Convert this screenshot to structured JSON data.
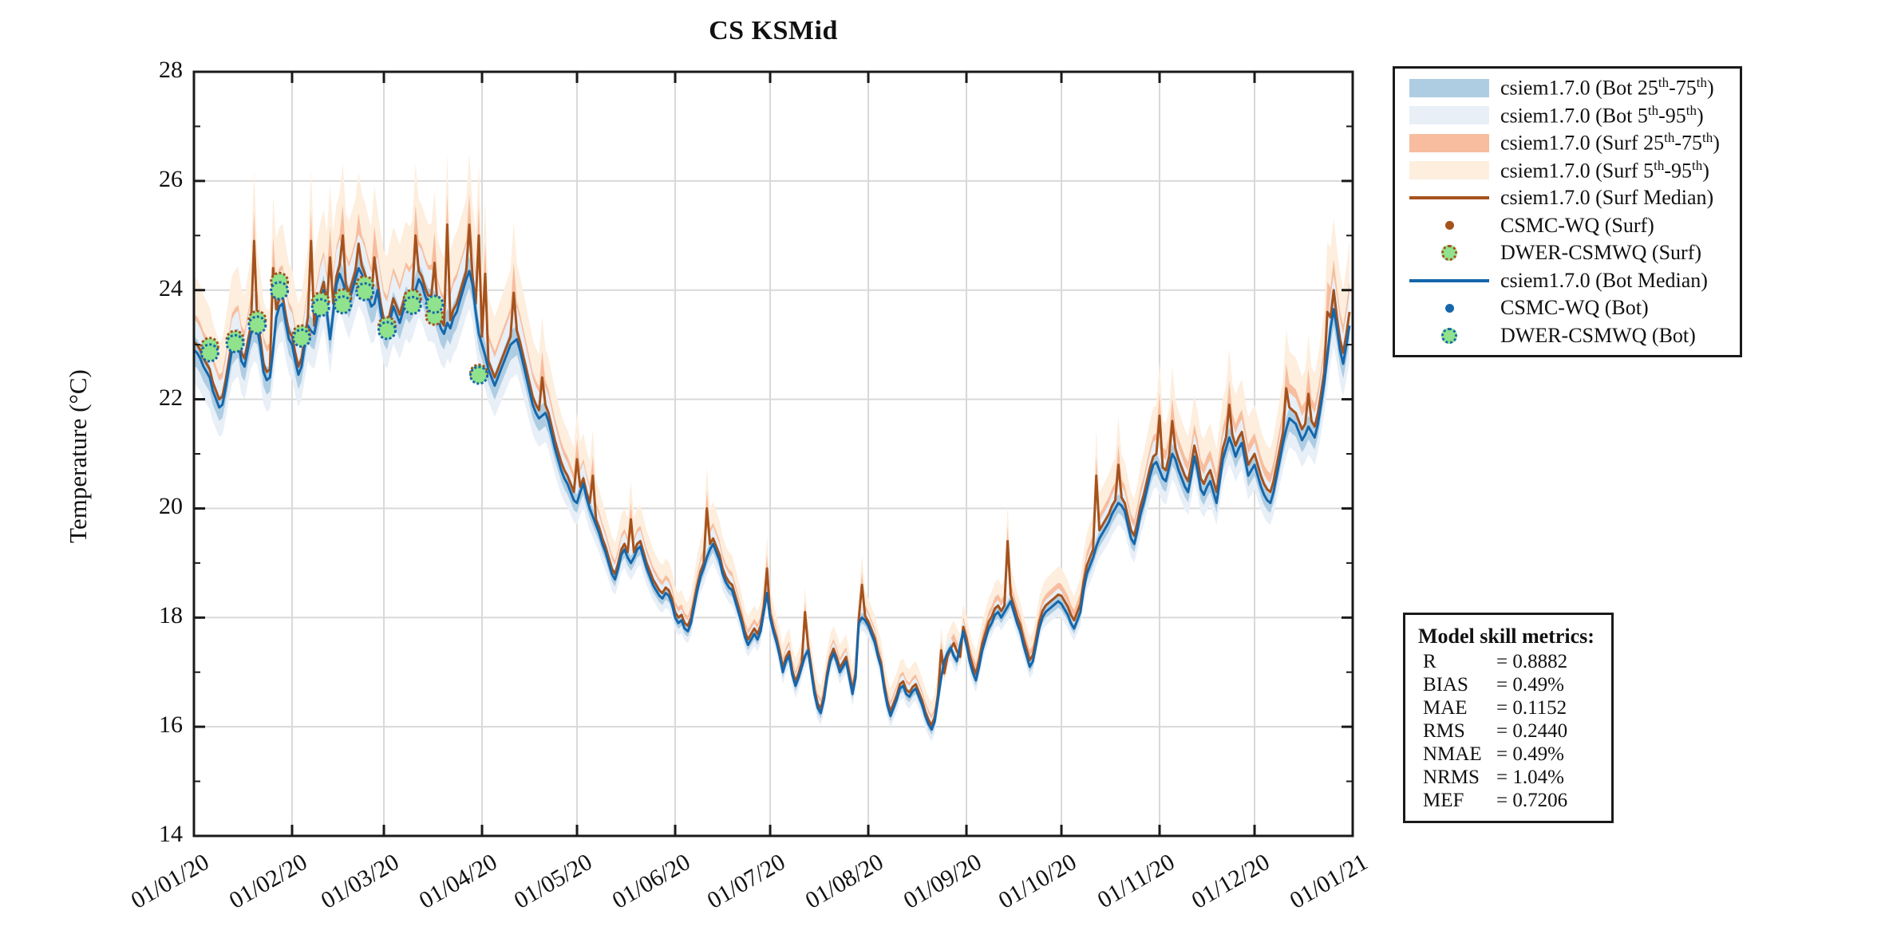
{
  "chart_data": {
    "type": "line",
    "title": "CS KSMid",
    "ylabel": "Temperature (°C)",
    "ylim": [
      14,
      28
    ],
    "yticks": [
      14,
      16,
      18,
      20,
      22,
      24,
      26,
      28
    ],
    "y_minor_ticks": [
      15,
      17,
      19,
      21,
      23,
      25,
      27
    ],
    "x_tick_labels": [
      "01/01/20",
      "01/02/20",
      "01/03/20",
      "01/04/20",
      "01/05/20",
      "01/06/20",
      "01/07/20",
      "01/08/20",
      "01/09/20",
      "01/10/20",
      "01/11/20",
      "01/12/20",
      "01/01/21"
    ],
    "x_tick_days": [
      0,
      31,
      60,
      91,
      121,
      152,
      182,
      213,
      244,
      274,
      305,
      335,
      366
    ],
    "n_days": 366,
    "grid": true,
    "axis_color": "#1a1a1a",
    "grid_color": "#d9d9d9",
    "series": [
      {
        "id": "bot",
        "name": "csiem1.7.0 (Bot Median)",
        "color": "#1467ab",
        "values": [
          22.9,
          22.85,
          22.75,
          22.6,
          22.5,
          22.4,
          22.15,
          22.0,
          21.85,
          21.9,
          22.2,
          22.55,
          22.9,
          23.0,
          23.05,
          22.7,
          22.6,
          22.9,
          23.2,
          23.35,
          23.3,
          22.95,
          22.5,
          22.35,
          22.4,
          22.9,
          23.5,
          23.7,
          23.75,
          23.4,
          23.1,
          23.0,
          22.7,
          22.45,
          22.6,
          23.0,
          23.35,
          23.25,
          23.2,
          23.5,
          23.8,
          24.0,
          23.6,
          23.1,
          23.6,
          24.1,
          24.3,
          24.15,
          23.95,
          23.8,
          24.0,
          24.2,
          24.4,
          24.3,
          24.15,
          23.9,
          23.7,
          23.75,
          24.0,
          23.6,
          23.3,
          23.2,
          23.45,
          23.7,
          23.55,
          23.4,
          23.6,
          23.8,
          23.7,
          23.8,
          24.0,
          24.2,
          24.1,
          23.9,
          23.75,
          23.75,
          23.7,
          23.5,
          23.3,
          23.2,
          23.4,
          23.3,
          23.5,
          23.6,
          23.8,
          24.0,
          24.2,
          24.35,
          24.1,
          23.6,
          23.2,
          23.0,
          22.8,
          22.55,
          22.4,
          22.25,
          22.4,
          22.55,
          22.7,
          22.85,
          23.0,
          23.05,
          23.1,
          22.9,
          22.65,
          22.4,
          22.15,
          21.9,
          21.75,
          21.65,
          21.7,
          21.75,
          21.6,
          21.35,
          21.1,
          20.9,
          20.7,
          20.55,
          20.45,
          20.3,
          20.15,
          20.1,
          20.3,
          20.45,
          20.2,
          20.0,
          19.85,
          19.7,
          19.55,
          19.35,
          19.2,
          19.0,
          18.8,
          18.7,
          18.9,
          19.15,
          19.25,
          19.1,
          19.0,
          19.1,
          19.25,
          19.3,
          19.1,
          18.9,
          18.75,
          18.6,
          18.5,
          18.4,
          18.35,
          18.45,
          18.4,
          18.25,
          18.0,
          17.9,
          17.95,
          17.8,
          17.75,
          17.9,
          18.2,
          18.5,
          18.75,
          18.9,
          19.1,
          19.25,
          19.35,
          19.2,
          19.05,
          18.8,
          18.65,
          18.55,
          18.5,
          18.3,
          18.1,
          17.9,
          17.65,
          17.5,
          17.6,
          17.7,
          17.6,
          17.75,
          18.1,
          18.45,
          18.0,
          17.75,
          17.55,
          17.3,
          17.0,
          17.2,
          17.3,
          16.95,
          16.75,
          16.9,
          17.1,
          17.3,
          17.4,
          17.0,
          16.6,
          16.35,
          16.25,
          16.5,
          16.9,
          17.2,
          17.35,
          17.2,
          17.0,
          17.1,
          17.2,
          16.9,
          16.6,
          16.9,
          17.9,
          18.0,
          17.95,
          17.85,
          17.7,
          17.55,
          17.3,
          17.1,
          16.7,
          16.4,
          16.2,
          16.35,
          16.5,
          16.7,
          16.75,
          16.6,
          16.55,
          16.65,
          16.7,
          16.55,
          16.4,
          16.2,
          16.05,
          15.95,
          16.1,
          16.5,
          16.9,
          17.2,
          17.35,
          17.45,
          17.3,
          17.2,
          17.5,
          17.75,
          17.5,
          17.2,
          17.0,
          16.85,
          17.1,
          17.4,
          17.6,
          17.8,
          17.9,
          18.05,
          18.1,
          18.0,
          18.1,
          18.2,
          18.3,
          18.1,
          17.9,
          17.75,
          17.5,
          17.3,
          17.1,
          17.2,
          17.5,
          17.8,
          18.0,
          18.1,
          18.15,
          18.2,
          18.25,
          18.3,
          18.25,
          18.15,
          18.05,
          17.9,
          17.8,
          17.95,
          18.1,
          18.5,
          18.8,
          18.95,
          19.1,
          19.3,
          19.45,
          19.55,
          19.65,
          19.75,
          19.9,
          20.0,
          20.1,
          20.05,
          19.95,
          19.7,
          19.45,
          19.35,
          19.6,
          19.9,
          20.1,
          20.35,
          20.6,
          20.8,
          20.85,
          20.7,
          20.55,
          20.5,
          20.75,
          21.0,
          20.9,
          20.7,
          20.55,
          20.4,
          20.3,
          20.6,
          20.95,
          20.7,
          20.35,
          20.25,
          20.4,
          20.5,
          20.3,
          20.1,
          20.5,
          20.9,
          21.1,
          21.3,
          21.15,
          20.95,
          21.1,
          21.2,
          20.9,
          20.6,
          20.7,
          20.8,
          20.6,
          20.4,
          20.25,
          20.15,
          20.1,
          20.3,
          20.6,
          20.9,
          21.2,
          21.45,
          21.65,
          21.6,
          21.55,
          21.4,
          21.25,
          21.35,
          21.5,
          21.4,
          21.3,
          21.55,
          21.9,
          22.3,
          22.8,
          23.3,
          23.65,
          23.3,
          22.9,
          22.65,
          23.0,
          23.35
        ]
      },
      {
        "id": "surf",
        "name": "csiem1.7.0 (Surf Median)",
        "color": "#a5521d",
        "values": [
          23.05,
          23.0,
          22.9,
          22.75,
          22.65,
          22.55,
          22.3,
          22.15,
          22.0,
          22.05,
          22.35,
          22.7,
          23.05,
          23.15,
          23.2,
          22.85,
          22.75,
          23.05,
          23.35,
          24.9,
          23.45,
          23.1,
          22.65,
          22.5,
          22.55,
          24.4,
          23.65,
          23.85,
          23.9,
          23.55,
          23.25,
          23.15,
          22.85,
          22.6,
          22.75,
          23.15,
          23.5,
          24.9,
          23.35,
          23.65,
          23.95,
          24.15,
          23.75,
          24.6,
          23.75,
          24.25,
          24.45,
          25.0,
          24.1,
          23.95,
          24.15,
          24.35,
          24.85,
          24.45,
          24.3,
          24.05,
          23.85,
          24.6,
          24.15,
          23.75,
          23.45,
          23.35,
          23.6,
          23.85,
          23.7,
          23.55,
          23.75,
          23.95,
          23.85,
          23.95,
          25.0,
          24.35,
          24.25,
          24.05,
          23.9,
          23.9,
          24.5,
          23.65,
          23.45,
          23.35,
          25.2,
          23.45,
          23.65,
          23.75,
          23.95,
          24.15,
          24.35,
          25.2,
          24.25,
          23.75,
          25.0,
          23.15,
          24.3,
          22.7,
          22.55,
          22.4,
          22.55,
          22.7,
          22.85,
          23.0,
          23.15,
          23.95,
          23.25,
          23.05,
          22.8,
          22.55,
          22.3,
          22.05,
          21.9,
          21.8,
          22.4,
          21.9,
          21.75,
          21.5,
          21.25,
          21.05,
          20.85,
          20.7,
          20.6,
          20.45,
          20.3,
          20.9,
          20.4,
          20.55,
          20.3,
          20.1,
          20.6,
          19.8,
          19.65,
          19.45,
          19.3,
          19.1,
          18.9,
          18.8,
          19.0,
          19.25,
          19.35,
          19.2,
          19.8,
          19.2,
          19.35,
          19.4,
          19.2,
          19.0,
          18.85,
          18.7,
          18.6,
          18.5,
          18.45,
          18.55,
          18.5,
          18.35,
          18.1,
          18.0,
          18.05,
          17.9,
          17.85,
          18.0,
          18.3,
          18.6,
          18.85,
          19.0,
          20.0,
          19.35,
          19.45,
          19.3,
          19.15,
          18.9,
          18.75,
          18.65,
          18.6,
          18.4,
          18.2,
          18.0,
          17.75,
          17.6,
          17.7,
          17.8,
          17.7,
          17.85,
          18.2,
          18.9,
          18.08,
          17.83,
          17.63,
          17.38,
          17.08,
          17.28,
          17.38,
          17.03,
          16.83,
          16.98,
          17.18,
          18.1,
          17.48,
          17.08,
          16.68,
          16.43,
          16.33,
          16.58,
          16.98,
          17.28,
          17.43,
          17.28,
          17.08,
          17.18,
          17.28,
          16.98,
          16.68,
          16.98,
          17.98,
          18.6,
          18.03,
          17.93,
          17.78,
          17.63,
          17.38,
          17.18,
          16.78,
          16.48,
          16.28,
          16.43,
          16.58,
          16.78,
          16.83,
          16.68,
          16.63,
          16.73,
          16.78,
          16.63,
          16.48,
          16.28,
          16.13,
          16.03,
          16.18,
          16.58,
          17.4,
          16.98,
          17.28,
          17.43,
          17.53,
          17.38,
          17.28,
          17.83,
          17.62,
          17.32,
          17.12,
          16.97,
          17.22,
          17.52,
          17.72,
          17.92,
          18.02,
          18.17,
          18.22,
          18.12,
          18.22,
          19.4,
          18.42,
          18.22,
          18.02,
          17.87,
          17.62,
          17.42,
          17.22,
          17.32,
          17.62,
          17.92,
          18.12,
          18.22,
          18.27,
          18.32,
          18.37,
          18.42,
          18.4,
          18.3,
          18.2,
          18.05,
          17.95,
          18.1,
          18.25,
          18.65,
          18.95,
          19.1,
          19.25,
          20.6,
          19.6,
          19.7,
          19.8,
          19.9,
          20.05,
          20.15,
          20.8,
          20.2,
          20.1,
          19.85,
          19.6,
          19.5,
          19.75,
          20.05,
          20.25,
          20.5,
          20.75,
          20.95,
          21.0,
          21.7,
          20.75,
          20.7,
          20.95,
          21.6,
          21.1,
          20.9,
          20.75,
          20.6,
          20.5,
          20.8,
          21.15,
          20.9,
          20.55,
          20.45,
          20.6,
          20.7,
          20.5,
          20.3,
          20.7,
          21.1,
          21.3,
          21.9,
          21.35,
          21.15,
          21.3,
          21.4,
          21.1,
          20.8,
          20.9,
          21.0,
          20.8,
          20.6,
          20.45,
          20.35,
          20.3,
          20.5,
          20.8,
          21.1,
          21.4,
          22.2,
          21.85,
          21.8,
          21.75,
          21.6,
          21.45,
          21.55,
          22.1,
          21.6,
          21.5,
          21.75,
          22.1,
          22.5,
          23.6,
          23.5,
          24.0,
          23.5,
          23.1,
          22.85,
          23.2,
          23.6
        ]
      }
    ],
    "bands": [
      {
        "name": "csiem1.7.0 (Surf 5th-95th)",
        "series": "surf",
        "color": "#fdeede",
        "upper": 1.05,
        "lower": 0.45
      },
      {
        "name": "csiem1.7.0 (Surf 25th-75th)",
        "series": "surf",
        "color": "#f7bd9e",
        "upper": 0.45,
        "lower": 0.2
      },
      {
        "name": "csiem1.7.0 (Bot 5th-95th)",
        "series": "bot",
        "color": "#e8eff7",
        "upper": 0.5,
        "lower": 0.55
      },
      {
        "name": "csiem1.7.0 (Bot 25th-75th)",
        "series": "bot",
        "color": "#aecde3",
        "upper": 0.22,
        "lower": 0.25
      }
    ],
    "observations": [
      {
        "id": "dwer_surf",
        "name": "DWER-CSMWQ (Surf)",
        "fill": "#90e28c",
        "edge": "#a5521d",
        "days": [
          5,
          13,
          20,
          27,
          34,
          40,
          47,
          54,
          61,
          69,
          76,
          90
        ],
        "values": [
          22.97,
          23.1,
          23.46,
          24.16,
          23.2,
          23.8,
          23.86,
          24.1,
          23.35,
          23.85,
          23.52,
          22.48
        ]
      },
      {
        "id": "dwer_bot",
        "name": "DWER-CSMWQ (Bot)",
        "fill": "#90e28c",
        "edge": "#1467ab",
        "days": [
          5,
          13,
          20,
          27,
          34,
          40,
          47,
          54,
          61,
          69,
          76,
          90
        ],
        "values": [
          22.85,
          23.02,
          23.36,
          23.99,
          23.12,
          23.68,
          23.73,
          23.97,
          23.26,
          23.72,
          23.74,
          22.44
        ]
      }
    ],
    "legend": {
      "entries": [
        {
          "type": "patch",
          "color": "#aecde3",
          "label": "csiem1.7.0 (Bot 25th-75th)"
        },
        {
          "type": "patch",
          "color": "#e8eff7",
          "label": "csiem1.7.0 (Bot 5th-95th)"
        },
        {
          "type": "patch",
          "color": "#f7bd9e",
          "label": "csiem1.7.0 (Surf 25th-75th)"
        },
        {
          "type": "patch",
          "color": "#fdeede",
          "label": "csiem1.7.0 (Surf 5th-95th)"
        },
        {
          "type": "line",
          "color": "#a5521d",
          "label": "csiem1.7.0 (Surf Median)"
        },
        {
          "type": "dot-small",
          "color": "#a5521d",
          "label": "CSMC-WQ (Surf)"
        },
        {
          "type": "dot-large",
          "fill": "#90e28c",
          "edge": "#a5521d",
          "label": "DWER-CSMWQ (Surf)"
        },
        {
          "type": "line",
          "color": "#1467ab",
          "label": "csiem1.7.0 (Bot Median)"
        },
        {
          "type": "dot-small",
          "color": "#1467ab",
          "label": "CSMC-WQ (Bot)"
        },
        {
          "type": "dot-large",
          "fill": "#90e28c",
          "edge": "#1467ab",
          "label": "DWER-CSMWQ (Bot)"
        }
      ]
    },
    "metrics": {
      "title": "Model skill metrics:",
      "rows": [
        {
          "label": "R",
          "value": "0.8882"
        },
        {
          "label": "BIAS",
          "value": "0.49%"
        },
        {
          "label": "MAE",
          "value": "0.1152"
        },
        {
          "label": "RMS",
          "value": "0.2440"
        },
        {
          "label": "NMAE",
          "value": "0.49%"
        },
        {
          "label": "NRMS",
          "value": "1.04%"
        },
        {
          "label": "MEF",
          "value": "0.7206"
        }
      ]
    }
  }
}
